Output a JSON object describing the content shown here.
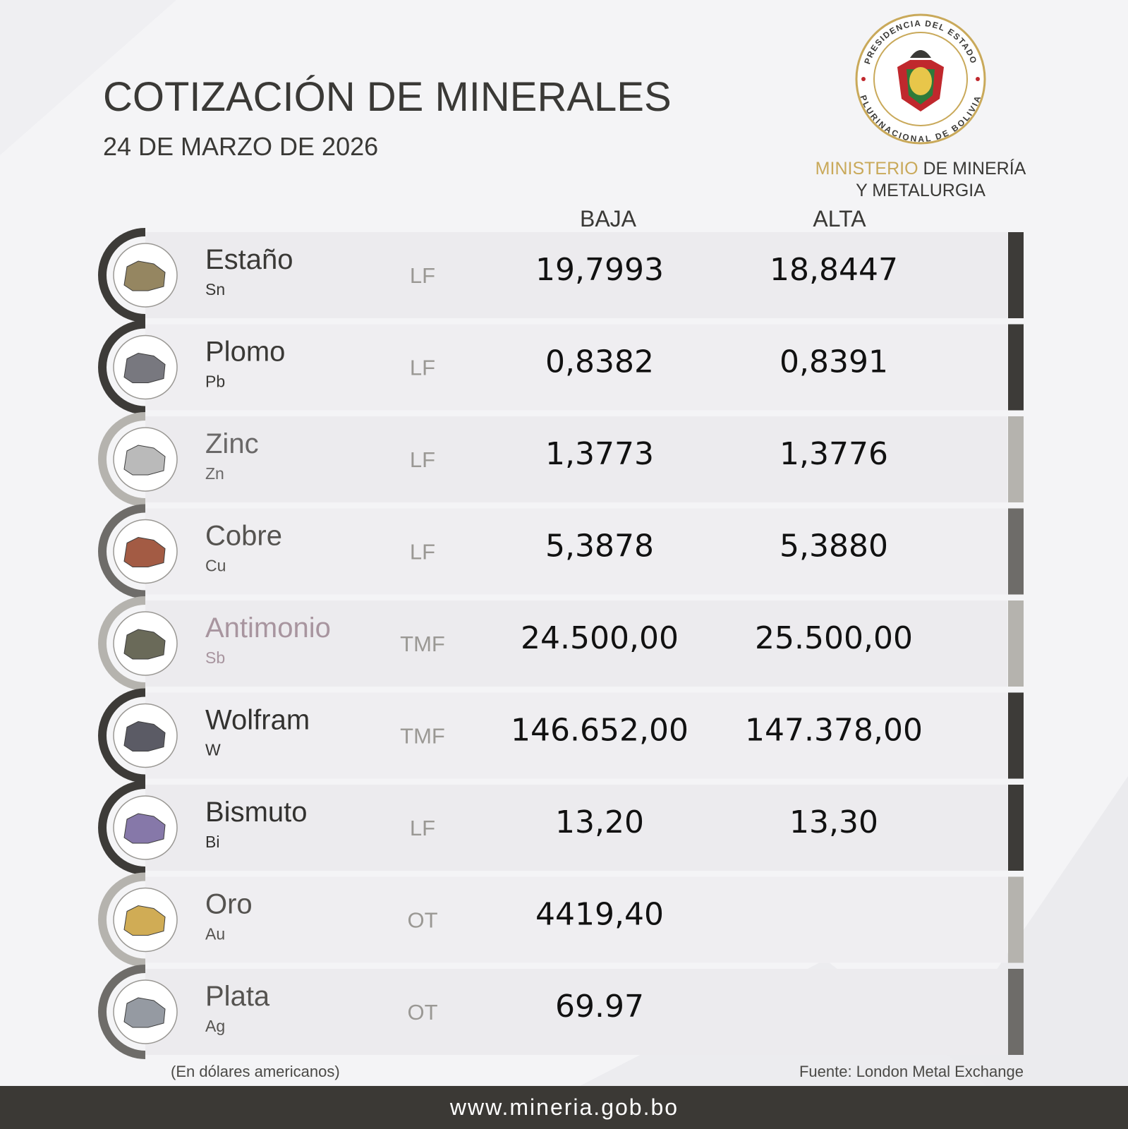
{
  "header": {
    "title": "COTIZACIÓN DE MINERALES",
    "date": "24 DE MARZO DE 2026"
  },
  "seal": {
    "top_text": "PRESIDENCIA DEL ESTADO",
    "bottom_text": "PLURINACIONAL DE BOLIVIA"
  },
  "ministry": {
    "highlight": "MINISTERIO",
    "line1": "DE MINERÍA",
    "line2": "Y METALURGIA"
  },
  "table": {
    "headers": {
      "baja": "BAJA",
      "alta": "ALTA"
    },
    "rows": [
      {
        "name": "Estaño",
        "symbol": "Sn",
        "unit": "LF",
        "baja": "19,7993",
        "alta": "18,8447"
      },
      {
        "name": "Plomo",
        "symbol": "Pb",
        "unit": "LF",
        "baja": "0,8382",
        "alta": "0,8391"
      },
      {
        "name": "Zinc",
        "symbol": "Zn",
        "unit": "LF",
        "baja": "1,3773",
        "alta": "1,3776"
      },
      {
        "name": "Cobre",
        "symbol": "Cu",
        "unit": "LF",
        "baja": "5,3878",
        "alta": "5,3880"
      },
      {
        "name": "Antimonio",
        "symbol": "Sb",
        "unit": "TMF",
        "baja": "24.500,00",
        "alta": "25.500,00"
      },
      {
        "name": "Wolfram",
        "symbol": "W",
        "unit": "TMF",
        "baja": "146.652,00",
        "alta": "147.378,00"
      },
      {
        "name": "Bismuto",
        "symbol": "Bi",
        "unit": "LF",
        "baja": "13,20",
        "alta": "13,30"
      },
      {
        "name": "Oro",
        "symbol": "Au",
        "unit": "OT",
        "baja": "4419,40"
      },
      {
        "name": "Plata",
        "symbol": "Ag",
        "unit": "OT",
        "baja": "69.97"
      }
    ]
  },
  "footer": {
    "note": "(En dólares americanos)",
    "source": "Fuente: London Metal Exchange",
    "website": "www.mineria.gob.bo"
  }
}
